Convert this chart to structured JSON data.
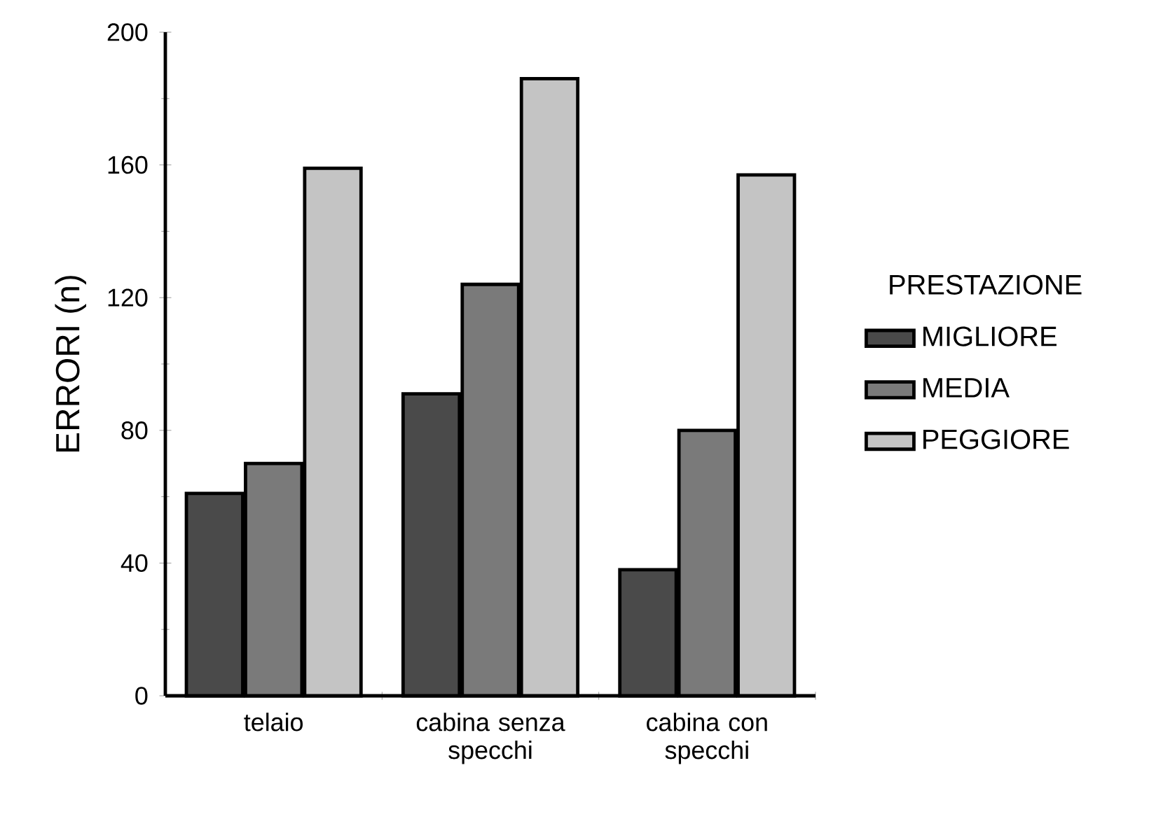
{
  "chart_data": {
    "type": "bar",
    "ylabel": "ERRORI (n)",
    "legend_title": "PRESTAZIONE",
    "categories": [
      "telaio",
      "cabina senza specchi",
      "cabina con specchi"
    ],
    "series": [
      {
        "name": "MIGLIORE",
        "color": "#4a4a4a",
        "values": [
          61,
          91,
          38
        ]
      },
      {
        "name": "MEDIA",
        "color": "#7a7a7a",
        "values": [
          70,
          124,
          80
        ]
      },
      {
        "name": "PEGGIORE",
        "color": "#c4c4c4",
        "values": [
          159,
          186,
          157
        ]
      }
    ],
    "ylim": [
      0,
      200
    ],
    "yticks": [
      0,
      40,
      80,
      120,
      160,
      200
    ],
    "legend": "right",
    "grid": false
  }
}
